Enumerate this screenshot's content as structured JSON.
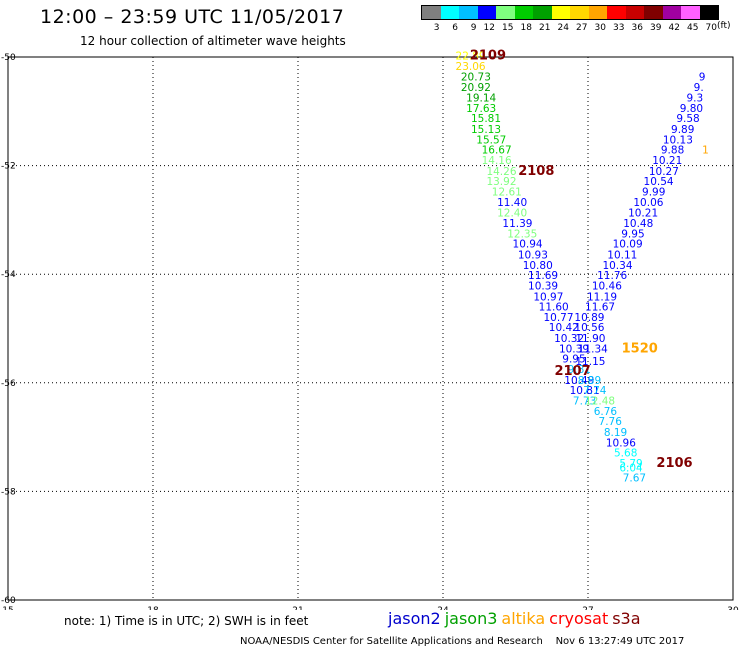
{
  "header": {
    "title": "12:00 – 23:59 UTC 11/05/2017",
    "subtitle": "12 hour collection of altimeter wave heights"
  },
  "colorbar": {
    "labels": [
      "3",
      "6",
      "9",
      "12",
      "15",
      "18",
      "21",
      "24",
      "27",
      "30",
      "33",
      "36",
      "39",
      "42",
      "45",
      "70"
    ],
    "colors": [
      "#7f7f7f",
      "#00ffff",
      "#00bfff",
      "#0000ff",
      "#7fff7f",
      "#00cc00",
      "#00a000",
      "#ffff00",
      "#ffd700",
      "#ffa500",
      "#ff0000",
      "#c80000",
      "#800000",
      "#a000a0",
      "#ff60ff",
      "#000000"
    ],
    "unit": "(ft)"
  },
  "map": {
    "lat_labels": [
      "-50",
      "-52",
      "-54",
      "-56",
      "-58",
      "-60"
    ],
    "lon_labels": [
      "15",
      "18",
      "21",
      "24",
      "27",
      "30"
    ],
    "lat_range": [
      -60,
      -50
    ],
    "lon_range": [
      15,
      30
    ],
    "grid": "dotted"
  },
  "observations": [
    {
      "lon": 24.57,
      "lat": -50.05,
      "text": "22.89",
      "color": "#ffff00"
    },
    {
      "lon": 24.57,
      "lat": -50.24,
      "text": "23.06",
      "color": "#ffd700"
    },
    {
      "lon": 24.68,
      "lat": -50.43,
      "text": "20.73",
      "color": "#00a000"
    },
    {
      "lon": 24.68,
      "lat": -50.63,
      "text": "20.92",
      "color": "#00a000"
    },
    {
      "lon": 24.79,
      "lat": -50.82,
      "text": "19.14",
      "color": "#00a000"
    },
    {
      "lon": 24.79,
      "lat": -51.01,
      "text": "17.63",
      "color": "#00cc00"
    },
    {
      "lon": 24.89,
      "lat": -51.2,
      "text": "15.81",
      "color": "#00cc00"
    },
    {
      "lon": 24.89,
      "lat": -51.4,
      "text": "15.13",
      "color": "#00cc00"
    },
    {
      "lon": 25.0,
      "lat": -51.59,
      "text": "15.57",
      "color": "#00cc00"
    },
    {
      "lon": 25.11,
      "lat": -51.78,
      "text": "16.67",
      "color": "#00cc00"
    },
    {
      "lon": 25.11,
      "lat": -51.97,
      "text": "14.16",
      "color": "#7fff7f"
    },
    {
      "lon": 25.21,
      "lat": -52.17,
      "text": "14.26",
      "color": "#7fff7f"
    },
    {
      "lon": 25.21,
      "lat": -52.36,
      "text": "13.92",
      "color": "#7fff7f"
    },
    {
      "lon": 25.32,
      "lat": -52.55,
      "text": "12.61",
      "color": "#7fff7f"
    },
    {
      "lon": 25.43,
      "lat": -52.74,
      "text": "11.40",
      "color": "#0000ff"
    },
    {
      "lon": 25.43,
      "lat": -52.94,
      "text": "12.40",
      "color": "#7fff7f"
    },
    {
      "lon": 25.54,
      "lat": -53.13,
      "text": "11.39",
      "color": "#0000ff"
    },
    {
      "lon": 25.64,
      "lat": -53.32,
      "text": "12.35",
      "color": "#7fff7f"
    },
    {
      "lon": 25.75,
      "lat": -53.51,
      "text": "10.94",
      "color": "#0000ff"
    },
    {
      "lon": 25.86,
      "lat": -53.71,
      "text": "10.93",
      "color": "#0000ff"
    },
    {
      "lon": 25.96,
      "lat": -53.9,
      "text": "10.80",
      "color": "#0000ff"
    },
    {
      "lon": 26.07,
      "lat": -54.09,
      "text": "11.69",
      "color": "#0000ff"
    },
    {
      "lon": 26.07,
      "lat": -54.28,
      "text": "10.39",
      "color": "#0000ff"
    },
    {
      "lon": 26.18,
      "lat": -54.48,
      "text": "10.97",
      "color": "#0000ff"
    },
    {
      "lon": 26.29,
      "lat": -54.67,
      "text": "11.60",
      "color": "#0000ff"
    },
    {
      "lon": 26.39,
      "lat": -54.86,
      "text": "10.77",
      "color": "#0000ff"
    },
    {
      "lon": 26.5,
      "lat": -55.05,
      "text": "10.42",
      "color": "#0000ff"
    },
    {
      "lon": 26.61,
      "lat": -55.25,
      "text": "10.32",
      "color": "#0000ff"
    },
    {
      "lon": 26.71,
      "lat": -55.44,
      "text": "10.39",
      "color": "#0000ff"
    },
    {
      "lon": 26.71,
      "lat": -55.63,
      "text": "9.95",
      "color": "#0000ff"
    },
    {
      "lon": 26.82,
      "lat": -55.82,
      "text": "9.81",
      "color": "#00bfff"
    },
    {
      "lon": 26.82,
      "lat": -56.02,
      "text": "10.49",
      "color": "#0000ff"
    },
    {
      "lon": 26.93,
      "lat": -56.21,
      "text": "10.81",
      "color": "#0000ff"
    },
    {
      "lon": 26.93,
      "lat": -56.4,
      "text": "7.73",
      "color": "#00bfff"
    },
    {
      "lon": 27.03,
      "lat": -54.86,
      "text": "10.89",
      "color": "#0000ff"
    },
    {
      "lon": 27.03,
      "lat": -55.05,
      "text": "10.56",
      "color": "#0000ff"
    },
    {
      "lon": 27.05,
      "lat": -55.25,
      "text": "11.90",
      "color": "#0000ff"
    },
    {
      "lon": 27.1,
      "lat": -55.44,
      "text": "11.34",
      "color": "#0000ff"
    },
    {
      "lon": 27.05,
      "lat": -55.67,
      "text": "11.15",
      "color": "#0000ff"
    },
    {
      "lon": 27.03,
      "lat": -56.02,
      "text": "8.89",
      "color": "#00bfff"
    },
    {
      "lon": 27.14,
      "lat": -56.21,
      "text": "7.74",
      "color": "#00bfff"
    },
    {
      "lon": 27.25,
      "lat": -56.4,
      "text": "12.48",
      "color": "#7fff7f"
    },
    {
      "lon": 27.36,
      "lat": -56.59,
      "text": "6.76",
      "color": "#00bfff"
    },
    {
      "lon": 27.46,
      "lat": -56.78,
      "text": "7.76",
      "color": "#00bfff"
    },
    {
      "lon": 27.57,
      "lat": -56.98,
      "text": "8.19",
      "color": "#00bfff"
    },
    {
      "lon": 27.68,
      "lat": -57.17,
      "text": "10.96",
      "color": "#0000ff"
    },
    {
      "lon": 27.78,
      "lat": -57.36,
      "text": "5.68",
      "color": "#00ffff"
    },
    {
      "lon": 27.89,
      "lat": -57.55,
      "text": "5.79",
      "color": "#00ffff"
    },
    {
      "lon": 27.89,
      "lat": -57.63,
      "text": "6.04",
      "color": "#00ffff"
    },
    {
      "lon": 27.96,
      "lat": -57.82,
      "text": "7.67",
      "color": "#00bfff"
    },
    {
      "lon": 27.25,
      "lat": -54.67,
      "text": "11.67",
      "color": "#0000ff"
    },
    {
      "lon": 27.29,
      "lat": -54.48,
      "text": "11.19",
      "color": "#0000ff"
    },
    {
      "lon": 27.39,
      "lat": -54.28,
      "text": "10.46",
      "color": "#0000ff"
    },
    {
      "lon": 27.5,
      "lat": -54.09,
      "text": "11.76",
      "color": "#0000ff"
    },
    {
      "lon": 27.61,
      "lat": -53.9,
      "text": "10.34",
      "color": "#0000ff"
    },
    {
      "lon": 27.71,
      "lat": -53.71,
      "text": "10.11",
      "color": "#0000ff"
    },
    {
      "lon": 27.82,
      "lat": -53.51,
      "text": "10.09",
      "color": "#0000ff"
    },
    {
      "lon": 27.93,
      "lat": -53.32,
      "text": "9.95",
      "color": "#0000ff"
    },
    {
      "lon": 28.04,
      "lat": -53.13,
      "text": "10.48",
      "color": "#0000ff"
    },
    {
      "lon": 28.14,
      "lat": -52.94,
      "text": "10.21",
      "color": "#0000ff"
    },
    {
      "lon": 28.25,
      "lat": -52.74,
      "text": "10.06",
      "color": "#0000ff"
    },
    {
      "lon": 28.36,
      "lat": -52.55,
      "text": "9.99",
      "color": "#0000ff"
    },
    {
      "lon": 28.46,
      "lat": -52.36,
      "text": "10.54",
      "color": "#0000ff"
    },
    {
      "lon": 28.57,
      "lat": -52.17,
      "text": "10.27",
      "color": "#0000ff"
    },
    {
      "lon": 28.64,
      "lat": -51.97,
      "text": "10.21",
      "color": "#0000ff"
    },
    {
      "lon": 28.75,
      "lat": -51.78,
      "text": "9.88",
      "color": "#0000ff"
    },
    {
      "lon": 28.86,
      "lat": -51.59,
      "text": "10.13",
      "color": "#0000ff"
    },
    {
      "lon": 28.96,
      "lat": -51.4,
      "text": "9.89",
      "color": "#0000ff"
    },
    {
      "lon": 29.07,
      "lat": -51.2,
      "text": "9.58",
      "color": "#0000ff"
    },
    {
      "lon": 29.14,
      "lat": -51.01,
      "text": "9.80",
      "color": "#0000ff"
    },
    {
      "lon": 29.21,
      "lat": -50.82,
      "text": "9.3",
      "color": "#0000ff"
    },
    {
      "lon": 29.29,
      "lat": -50.63,
      "text": "9.",
      "color": "#0000ff"
    },
    {
      "lon": 29.36,
      "lat": -50.43,
      "text": "9",
      "color": "#0000ff"
    },
    {
      "lon": 29.43,
      "lat": -51.78,
      "text": "1",
      "color": "#ffa500"
    }
  ],
  "pass_labels": [
    {
      "lon": 24.93,
      "lat": -50.05,
      "text": "2109",
      "color": "#800000"
    },
    {
      "lon": 25.93,
      "lat": -52.17,
      "text": "2108",
      "color": "#800000"
    },
    {
      "lon": 26.68,
      "lat": -55.86,
      "text": "2107",
      "color": "#800000"
    },
    {
      "lon": 28.07,
      "lat": -55.44,
      "text": "1520",
      "color": "#ffa500"
    },
    {
      "lon": 28.79,
      "lat": -57.55,
      "text": "2106",
      "color": "#800000"
    }
  ],
  "footer": {
    "note": "note: 1) Time is in UTC; 2) SWH is in feet",
    "satellites": [
      {
        "name": "jason2",
        "color": "#0000cc"
      },
      {
        "name": "jason3",
        "color": "#00a000"
      },
      {
        "name": "altika",
        "color": "#ffa500"
      },
      {
        "name": "cryosat",
        "color": "#ff0000"
      },
      {
        "name": "s3a",
        "color": "#800000"
      }
    ],
    "credit": "NOAA/NESDIS Center for Satellite Applications and Research",
    "timestamp": "Nov  6 13:27:49 UTC 2017"
  }
}
